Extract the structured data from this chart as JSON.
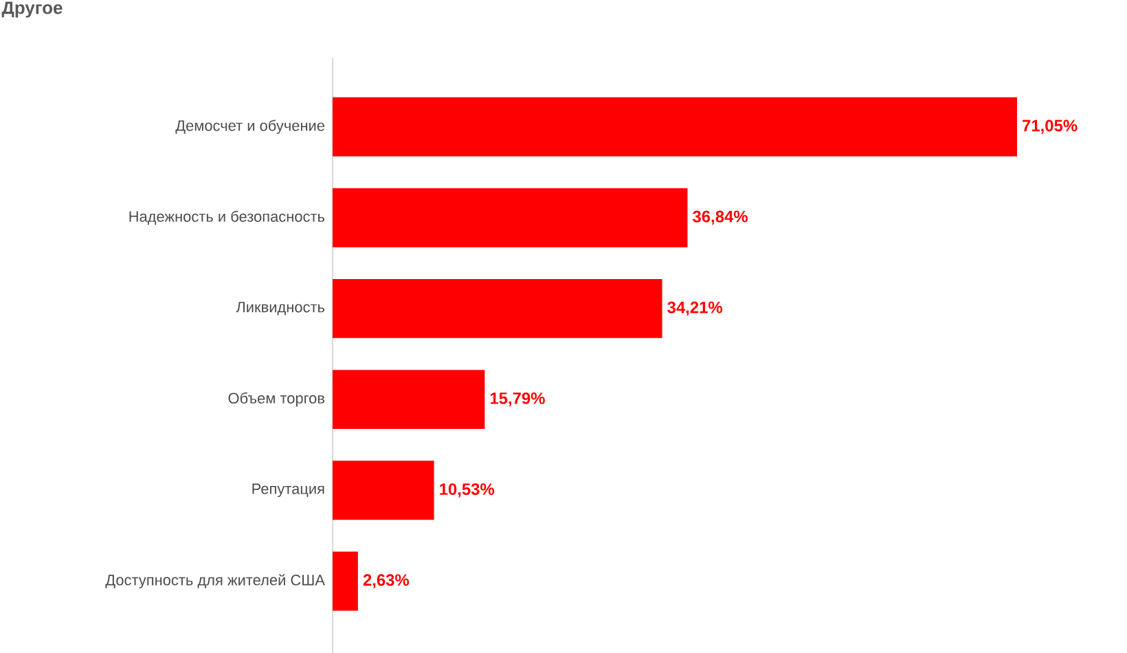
{
  "chart_data": {
    "type": "bar",
    "orientation": "horizontal",
    "title": "Другое",
    "categories": [
      "Демосчет и обучение",
      "Надежность и безопасность",
      "Ликвидность",
      "Объем торгов",
      "Репутация",
      "Доступность для жителей США"
    ],
    "values": [
      71.05,
      36.84,
      34.21,
      15.79,
      10.53,
      2.63
    ],
    "value_labels": [
      "71,05%",
      "36,84%",
      "34,21%",
      "15,79%",
      "10,53%",
      "2,63%"
    ],
    "color": "#ff0000"
  }
}
